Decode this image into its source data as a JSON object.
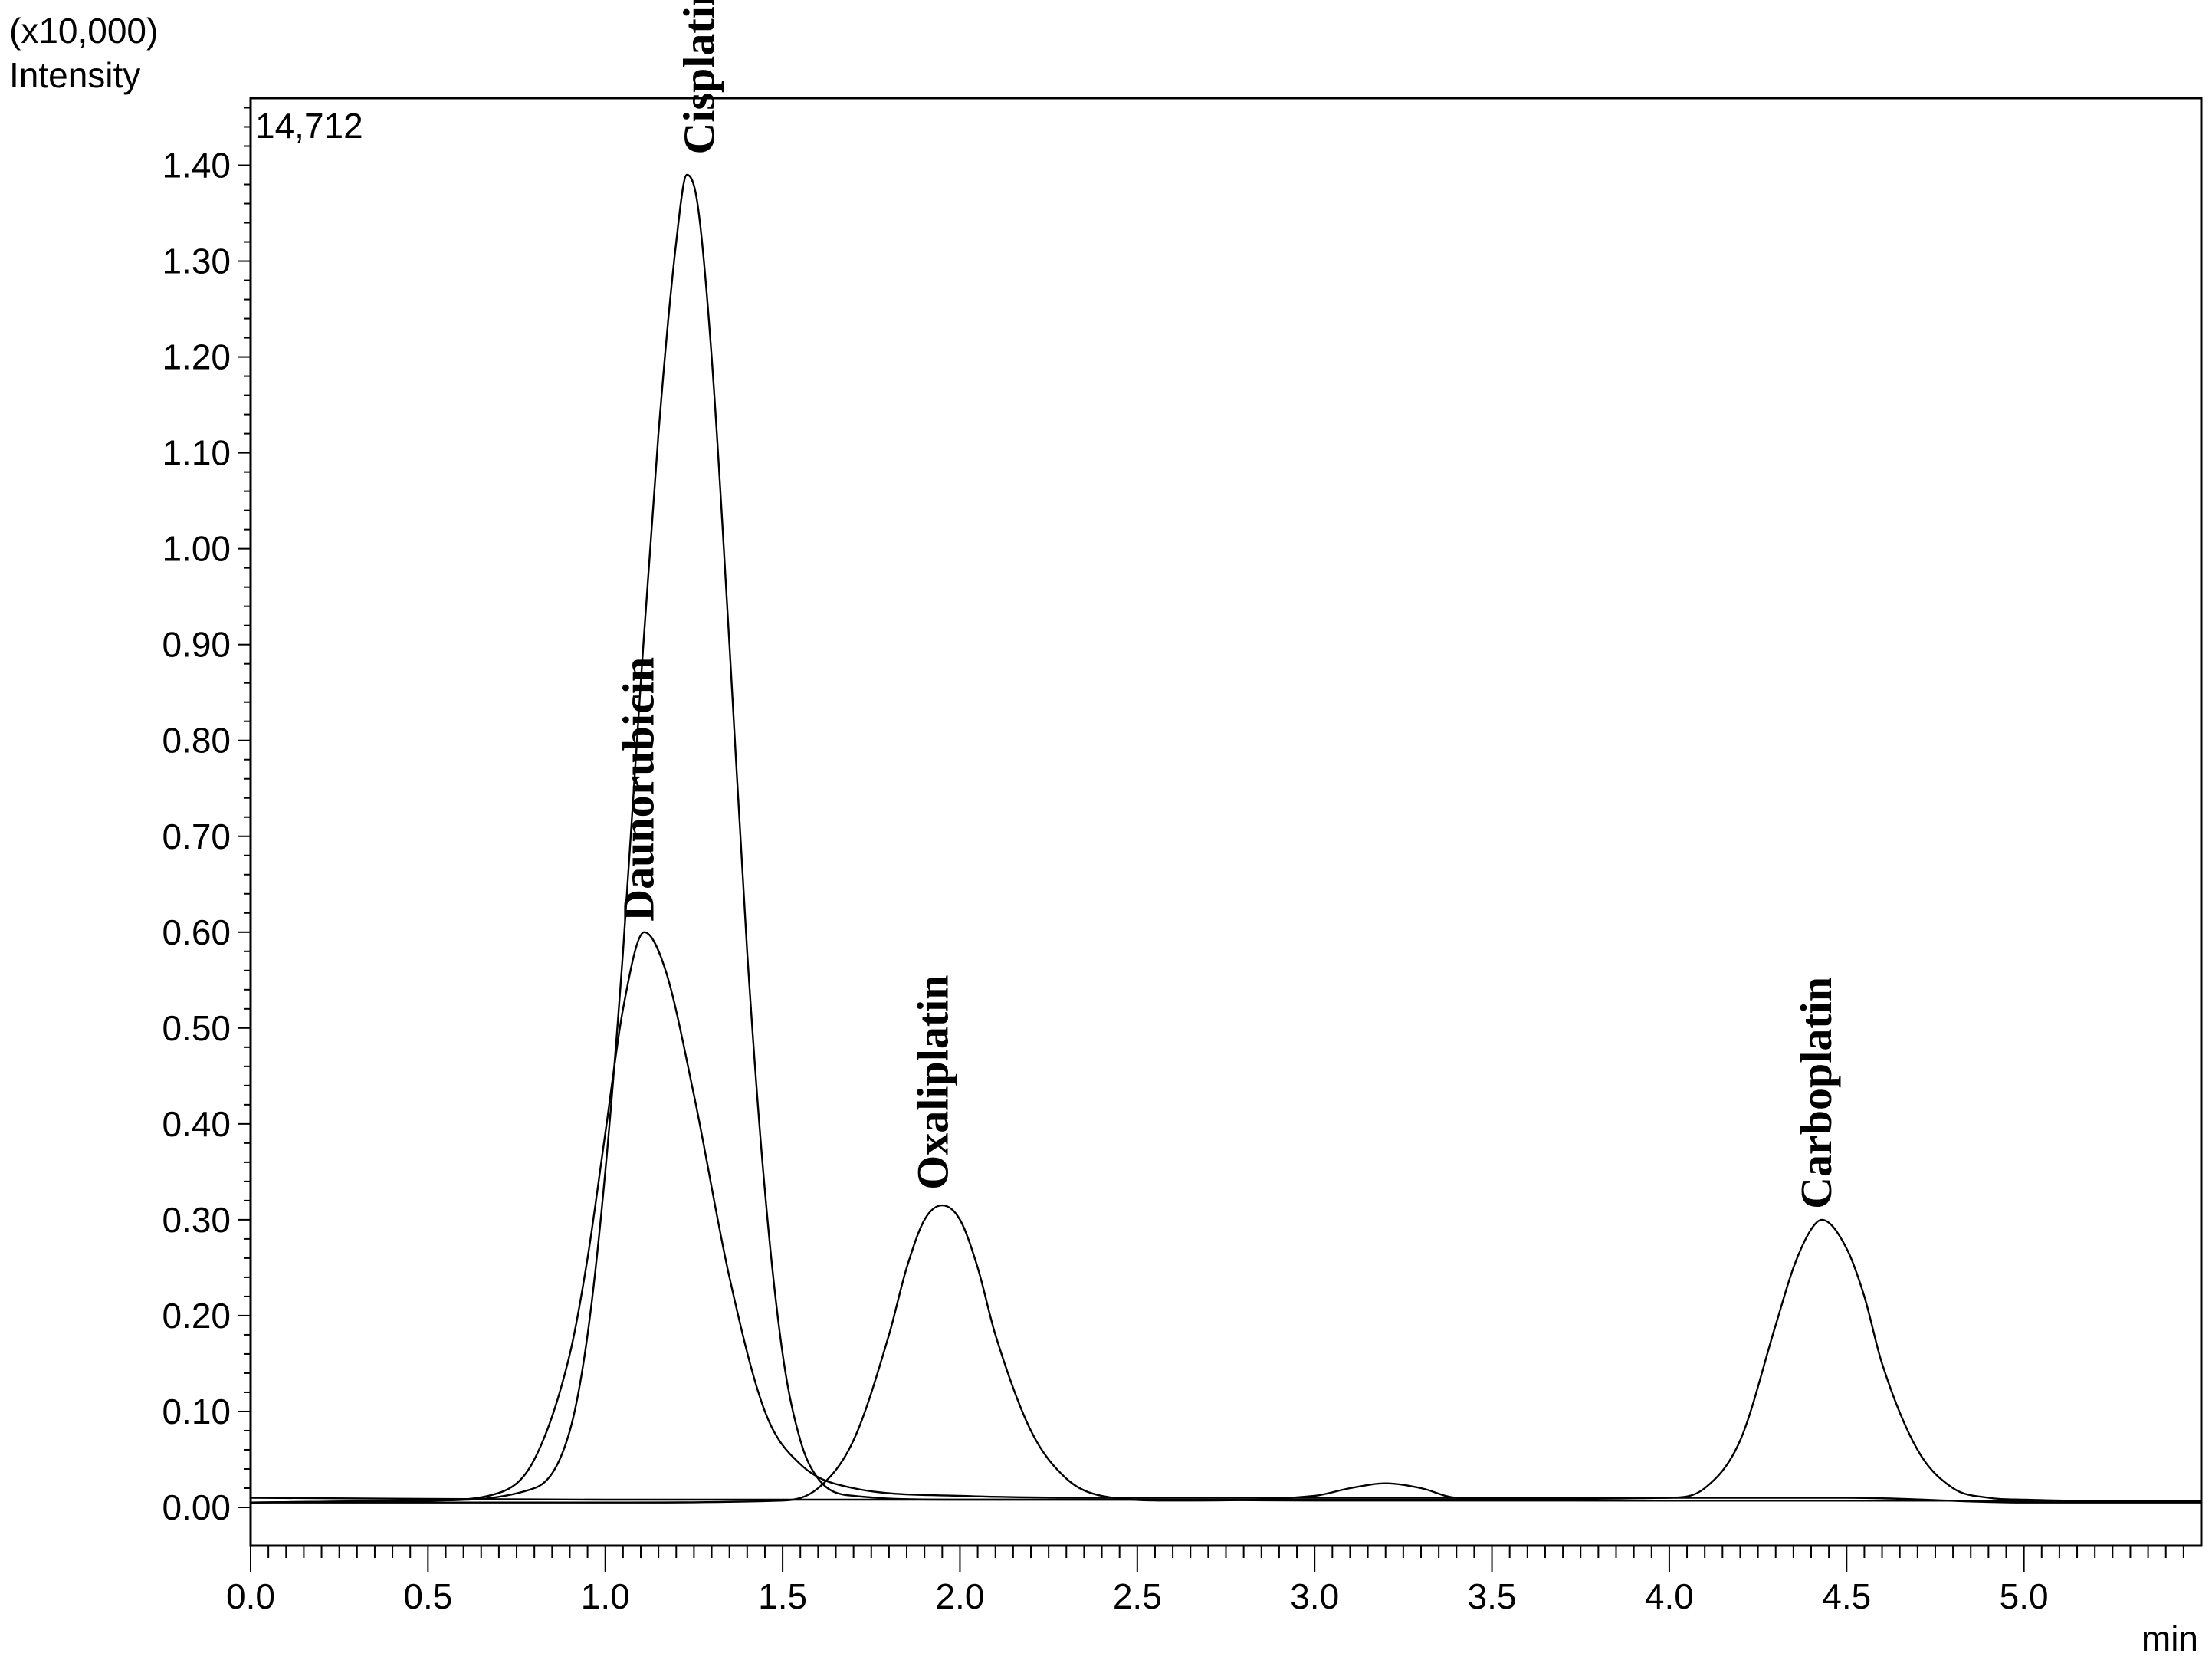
{
  "chart_data": {
    "type": "line",
    "title": "",
    "ylabel_multiplier": "(x10,000)",
    "ylabel": "Intensity",
    "xlabel": "min",
    "max_intensity_label": "14,712",
    "xlim": [
      0.0,
      5.5
    ],
    "ylim": [
      -0.04,
      1.47
    ],
    "x_ticks": [
      "0.0",
      "0.5",
      "1.0",
      "1.5",
      "2.0",
      "2.5",
      "3.0",
      "3.5",
      "4.0",
      "4.5",
      "5.0"
    ],
    "y_ticks": [
      "0.00",
      "0.10",
      "0.20",
      "0.30",
      "0.40",
      "0.50",
      "0.60",
      "0.70",
      "0.80",
      "0.90",
      "1.00",
      "1.10",
      "1.20",
      "1.30",
      "1.40"
    ],
    "grid": false,
    "line_color": "#000000",
    "peak_labels": [
      {
        "text": "Daunorubicin",
        "x": 1.11,
        "y": 0.6
      },
      {
        "text": "Cisplatin",
        "x": 1.28,
        "y": 1.4
      },
      {
        "text": "Oxaliplatin",
        "x": 1.94,
        "y": 0.32
      },
      {
        "text": "Carboplatin",
        "x": 4.43,
        "y": 0.3
      }
    ],
    "series": [
      {
        "x": [
          0.0,
          0.5,
          0.7,
          0.8,
          0.9,
          0.95,
          1.0,
          1.05,
          1.11,
          1.17,
          1.25,
          1.35,
          1.45,
          1.55,
          1.7,
          2.0,
          2.5,
          3.0,
          3.5,
          4.0,
          4.5,
          5.0,
          5.5
        ],
        "y": [
          0.005,
          0.007,
          0.015,
          0.05,
          0.16,
          0.26,
          0.39,
          0.52,
          0.6,
          0.56,
          0.43,
          0.24,
          0.1,
          0.045,
          0.02,
          0.012,
          0.01,
          0.01,
          0.01,
          0.01,
          0.01,
          0.005,
          0.005
        ]
      },
      {
        "x": [
          0.0,
          0.5,
          0.8,
          0.9,
          0.95,
          1.0,
          1.05,
          1.1,
          1.15,
          1.2,
          1.23,
          1.26,
          1.3,
          1.35,
          1.4,
          1.45,
          1.5,
          1.55,
          1.6,
          1.7,
          2.0,
          2.5,
          3.0,
          3.5,
          4.0,
          4.5,
          5.0,
          5.5
        ],
        "y": [
          0.005,
          0.007,
          0.02,
          0.08,
          0.18,
          0.35,
          0.58,
          0.86,
          1.12,
          1.32,
          1.39,
          1.36,
          1.2,
          0.9,
          0.58,
          0.33,
          0.16,
          0.07,
          0.03,
          0.012,
          0.008,
          0.008,
          0.007,
          0.007,
          0.007,
          0.007,
          0.007,
          0.007
        ]
      },
      {
        "x": [
          0.0,
          1.0,
          1.5,
          1.6,
          1.7,
          1.8,
          1.85,
          1.9,
          1.95,
          2.0,
          2.05,
          2.1,
          2.2,
          2.3,
          2.4,
          2.6,
          3.0,
          3.1,
          3.2,
          3.3,
          3.4,
          4.0,
          4.5,
          5.0,
          5.5
        ],
        "y": [
          0.005,
          0.005,
          0.007,
          0.02,
          0.07,
          0.18,
          0.25,
          0.3,
          0.315,
          0.3,
          0.25,
          0.18,
          0.08,
          0.03,
          0.012,
          0.007,
          0.012,
          0.02,
          0.025,
          0.02,
          0.01,
          0.007,
          0.007,
          0.007,
          0.007
        ]
      },
      {
        "x": [
          0.0,
          1.0,
          2.0,
          3.0,
          4.0,
          4.1,
          4.2,
          4.3,
          4.35,
          4.4,
          4.43,
          4.5,
          4.55,
          4.6,
          4.7,
          4.8,
          4.9,
          5.0,
          5.5
        ],
        "y": [
          0.01,
          0.008,
          0.008,
          0.008,
          0.01,
          0.02,
          0.07,
          0.19,
          0.25,
          0.29,
          0.3,
          0.27,
          0.22,
          0.15,
          0.06,
          0.02,
          0.01,
          0.008,
          0.006
        ]
      }
    ]
  }
}
